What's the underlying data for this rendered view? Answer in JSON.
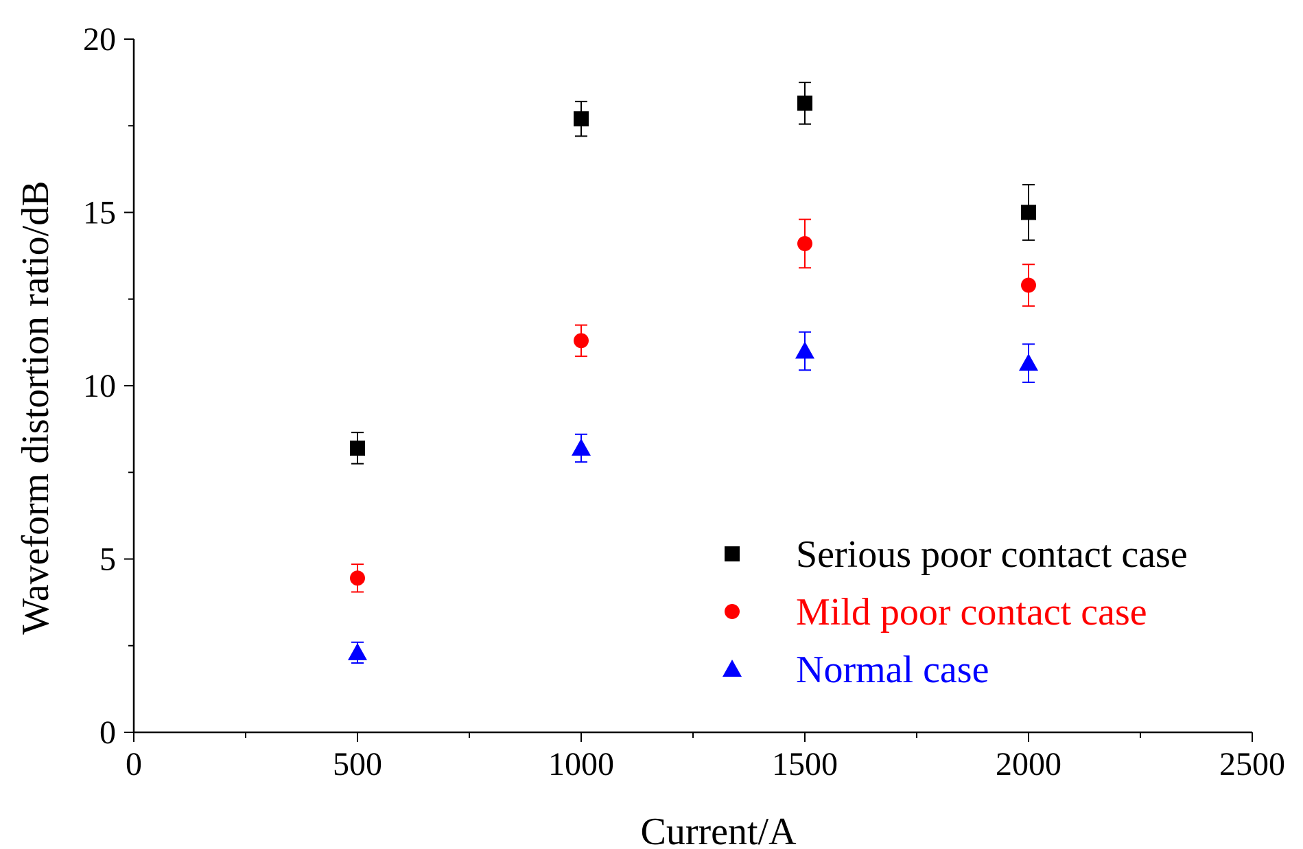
{
  "chart_data": {
    "type": "scatter",
    "title": "",
    "xlabel": "Current/A",
    "ylabel": "Waveform distortion ratio/dB",
    "xlim": [
      0,
      2500
    ],
    "ylim": [
      0,
      20
    ],
    "xticks": [
      0,
      500,
      1000,
      1500,
      2000,
      2500
    ],
    "xtick_labels": [
      "0",
      "500",
      "1000",
      "1500",
      "2000",
      "2500"
    ],
    "yticks": [
      0,
      5,
      10,
      15,
      20
    ],
    "ytick_labels": [
      "0",
      "5",
      "10",
      "15",
      "20"
    ],
    "grid": false,
    "legend_position": "bottom-right",
    "x": [
      500,
      1000,
      1500,
      2000
    ],
    "series": [
      {
        "name": "Serious poor contact case",
        "marker": "square",
        "color": "#000000",
        "values": [
          8.2,
          17.7,
          18.15,
          15.0
        ],
        "errors": [
          0.45,
          0.5,
          0.6,
          0.8
        ]
      },
      {
        "name": "Mild poor contact case",
        "marker": "circle",
        "color": "#ff0000",
        "values": [
          4.45,
          11.3,
          14.1,
          12.9
        ],
        "errors": [
          0.4,
          0.45,
          0.7,
          0.6
        ]
      },
      {
        "name": "Normal case",
        "marker": "triangle",
        "color": "#0000ff",
        "values": [
          2.3,
          8.2,
          11.0,
          10.65
        ],
        "errors": [
          0.3,
          0.4,
          0.55,
          0.55
        ]
      }
    ]
  }
}
